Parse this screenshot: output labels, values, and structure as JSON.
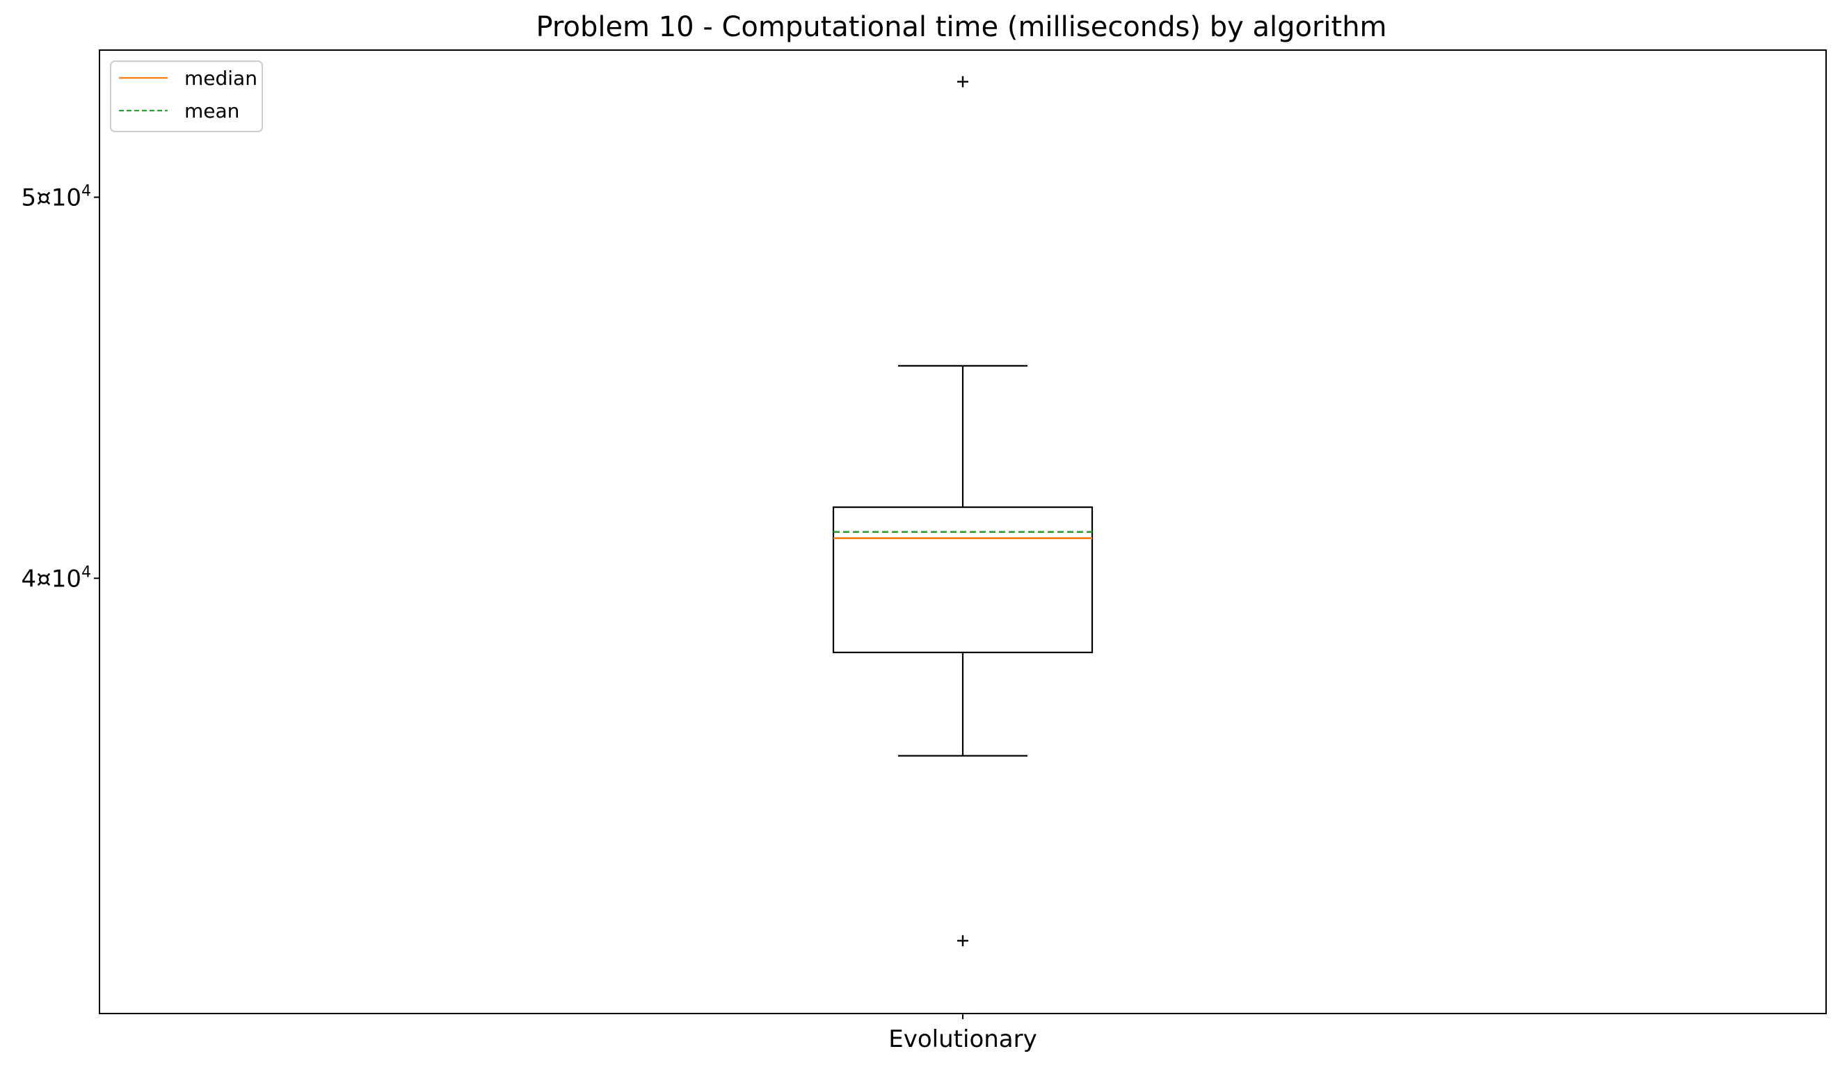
{
  "chart_data": {
    "type": "box",
    "title": "Problem 10 - Computational time (milliseconds) by algorithm",
    "xlabel": "",
    "ylabel": "",
    "yscale": "log",
    "ylim": [
      31000,
      54500
    ],
    "yticks": [
      {
        "value": 40000,
        "mantissa": "4",
        "sep": "¤",
        "base": "10",
        "exp": "4"
      },
      {
        "value": 50000,
        "mantissa": "5",
        "sep": "¤",
        "base": "10",
        "exp": "4"
      }
    ],
    "categories": [
      "Evolutionary"
    ],
    "boxes": [
      {
        "category": "Evolutionary",
        "whisker_low": 36050,
        "q1": 38300,
        "median": 40950,
        "mean": 41100,
        "q3": 41700,
        "whisker_high": 45300,
        "outliers": [
          53500,
          32350
        ]
      }
    ],
    "legend": {
      "position": "top-left",
      "items": [
        {
          "label": "median",
          "color": "#ff7f0e",
          "style": "solid"
        },
        {
          "label": "mean",
          "color": "#2ca02c",
          "style": "dashed"
        }
      ]
    },
    "grid": false
  }
}
